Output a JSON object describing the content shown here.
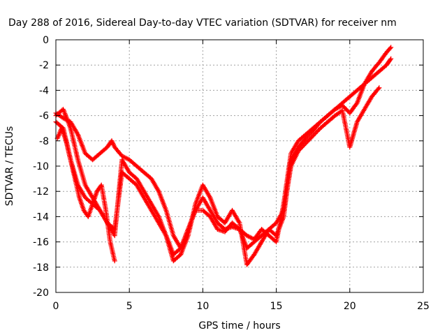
{
  "chart_data": {
    "type": "scatter",
    "title": "Day 288 of 2016, Sidereal Day-to-day VTEC variation (SDTVAR) for receiver nm",
    "xlabel": "GPS time / hours",
    "ylabel": "SDTVAR / TECUs",
    "xlim": [
      0,
      25
    ],
    "ylim": [
      -20,
      0
    ],
    "xticks": [
      0,
      5,
      10,
      15,
      20,
      25
    ],
    "yticks": [
      0,
      -2,
      -4,
      -6,
      -8,
      -10,
      -12,
      -14,
      -16,
      -18,
      -20
    ],
    "grid": true,
    "marker": "plus",
    "color": "#ff0000",
    "series": [
      {
        "x": [
          0.0,
          0.5,
          1.0,
          1.5,
          2.0,
          2.5,
          3.0,
          3.5,
          3.8,
          4.0,
          4.5,
          5.0,
          5.5,
          6.0,
          6.5,
          7.0,
          7.5,
          8.0,
          8.5,
          9.0,
          9.5,
          10.0,
          10.5,
          11.0,
          11.5,
          12.0,
          12.5,
          13.0,
          13.5,
          14.0,
          14.5,
          15.0,
          15.5,
          16.0,
          16.5,
          17.0,
          17.5,
          18.0,
          18.5,
          19.0,
          19.5,
          20.0,
          20.5,
          21.0,
          21.5,
          22.0,
          22.5,
          22.8
        ],
        "y": [
          -5.8,
          -6.2,
          -6.5,
          -7.5,
          -9.0,
          -9.5,
          -9.0,
          -8.5,
          -8.0,
          -8.5,
          -9.2,
          -9.5,
          -10.0,
          -10.5,
          -11.0,
          -12.0,
          -13.5,
          -15.5,
          -16.5,
          -15.0,
          -13.5,
          -12.5,
          -13.5,
          -14.5,
          -15.0,
          -14.8,
          -15.0,
          -15.5,
          -15.8,
          -15.0,
          -15.5,
          -16.0,
          -13.0,
          -9.0,
          -8.0,
          -7.5,
          -7.0,
          -6.5,
          -6.0,
          -5.5,
          -5.0,
          -4.5,
          -4.0,
          -3.5,
          -3.0,
          -2.5,
          -2.0,
          -1.5
        ]
      },
      {
        "x": [
          0.0,
          0.5,
          1.0,
          1.5,
          2.0,
          2.5,
          3.0,
          3.5,
          4.0,
          4.5,
          5.0,
          5.5,
          6.0,
          6.5,
          7.0,
          7.5,
          8.0,
          8.5,
          9.0,
          9.5,
          10.0,
          10.5,
          11.0,
          11.5,
          12.0,
          12.5,
          13.0,
          13.5,
          14.0,
          14.5,
          15.0,
          15.5,
          16.0,
          16.5,
          17.0,
          17.5,
          18.0,
          18.5,
          19.0,
          19.5,
          20.0,
          20.5,
          21.0,
          21.5,
          22.0,
          22.5,
          22.8
        ],
        "y": [
          -6.0,
          -5.5,
          -7.0,
          -9.5,
          -11.5,
          -12.5,
          -13.5,
          -14.5,
          -15.0,
          -10.5,
          -11.0,
          -11.5,
          -12.5,
          -13.5,
          -14.5,
          -15.5,
          -17.5,
          -17.0,
          -15.5,
          -13.0,
          -11.5,
          -12.5,
          -14.0,
          -14.5,
          -13.5,
          -14.5,
          -17.8,
          -17.0,
          -16.0,
          -15.0,
          -15.5,
          -14.0,
          -9.5,
          -8.5,
          -7.8,
          -7.2,
          -6.5,
          -6.0,
          -5.5,
          -5.2,
          -5.8,
          -5.0,
          -3.5,
          -2.5,
          -1.8,
          -1.0,
          -0.6
        ]
      },
      {
        "x": [
          0.0,
          0.5,
          1.0,
          1.5,
          2.0,
          2.5,
          3.0,
          3.5,
          4.0,
          4.5,
          5.0,
          5.5,
          6.0,
          6.5,
          7.0,
          7.5,
          8.0,
          8.5,
          9.0,
          9.5,
          10.0,
          10.5,
          11.0,
          11.5,
          12.0,
          12.5,
          13.0,
          13.5,
          14.0,
          14.5,
          15.0,
          15.5,
          16.0,
          16.5,
          17.0,
          17.5,
          18.0,
          18.5,
          19.0,
          19.5,
          20.0,
          20.5,
          21.0,
          21.5,
          22.0
        ],
        "y": [
          -6.5,
          -7.0,
          -9.5,
          -11.5,
          -12.5,
          -13.0,
          -13.5,
          -14.5,
          -15.5,
          -9.5,
          -10.5,
          -11.0,
          -12.0,
          -13.0,
          -14.0,
          -15.5,
          -17.0,
          -16.5,
          -15.0,
          -13.5,
          -13.5,
          -14.0,
          -15.0,
          -15.2,
          -14.5,
          -15.0,
          -16.5,
          -16.0,
          -15.5,
          -15.0,
          -14.5,
          -13.5,
          -10.0,
          -8.8,
          -8.2,
          -7.6,
          -7.0,
          -6.5,
          -6.0,
          -5.6,
          -8.5,
          -6.5,
          -5.5,
          -4.5,
          -3.8
        ]
      },
      {
        "x": [
          0.1,
          0.4,
          0.7,
          1.0,
          1.3,
          1.6,
          1.9,
          2.2,
          2.5,
          2.8,
          3.1,
          3.4,
          3.7,
          4.0
        ],
        "y": [
          -7.8,
          -7.0,
          -8.0,
          -9.5,
          -11.0,
          -12.5,
          -13.5,
          -14.0,
          -13.0,
          -12.0,
          -11.5,
          -13.5,
          -16.0,
          -17.5
        ]
      }
    ]
  }
}
